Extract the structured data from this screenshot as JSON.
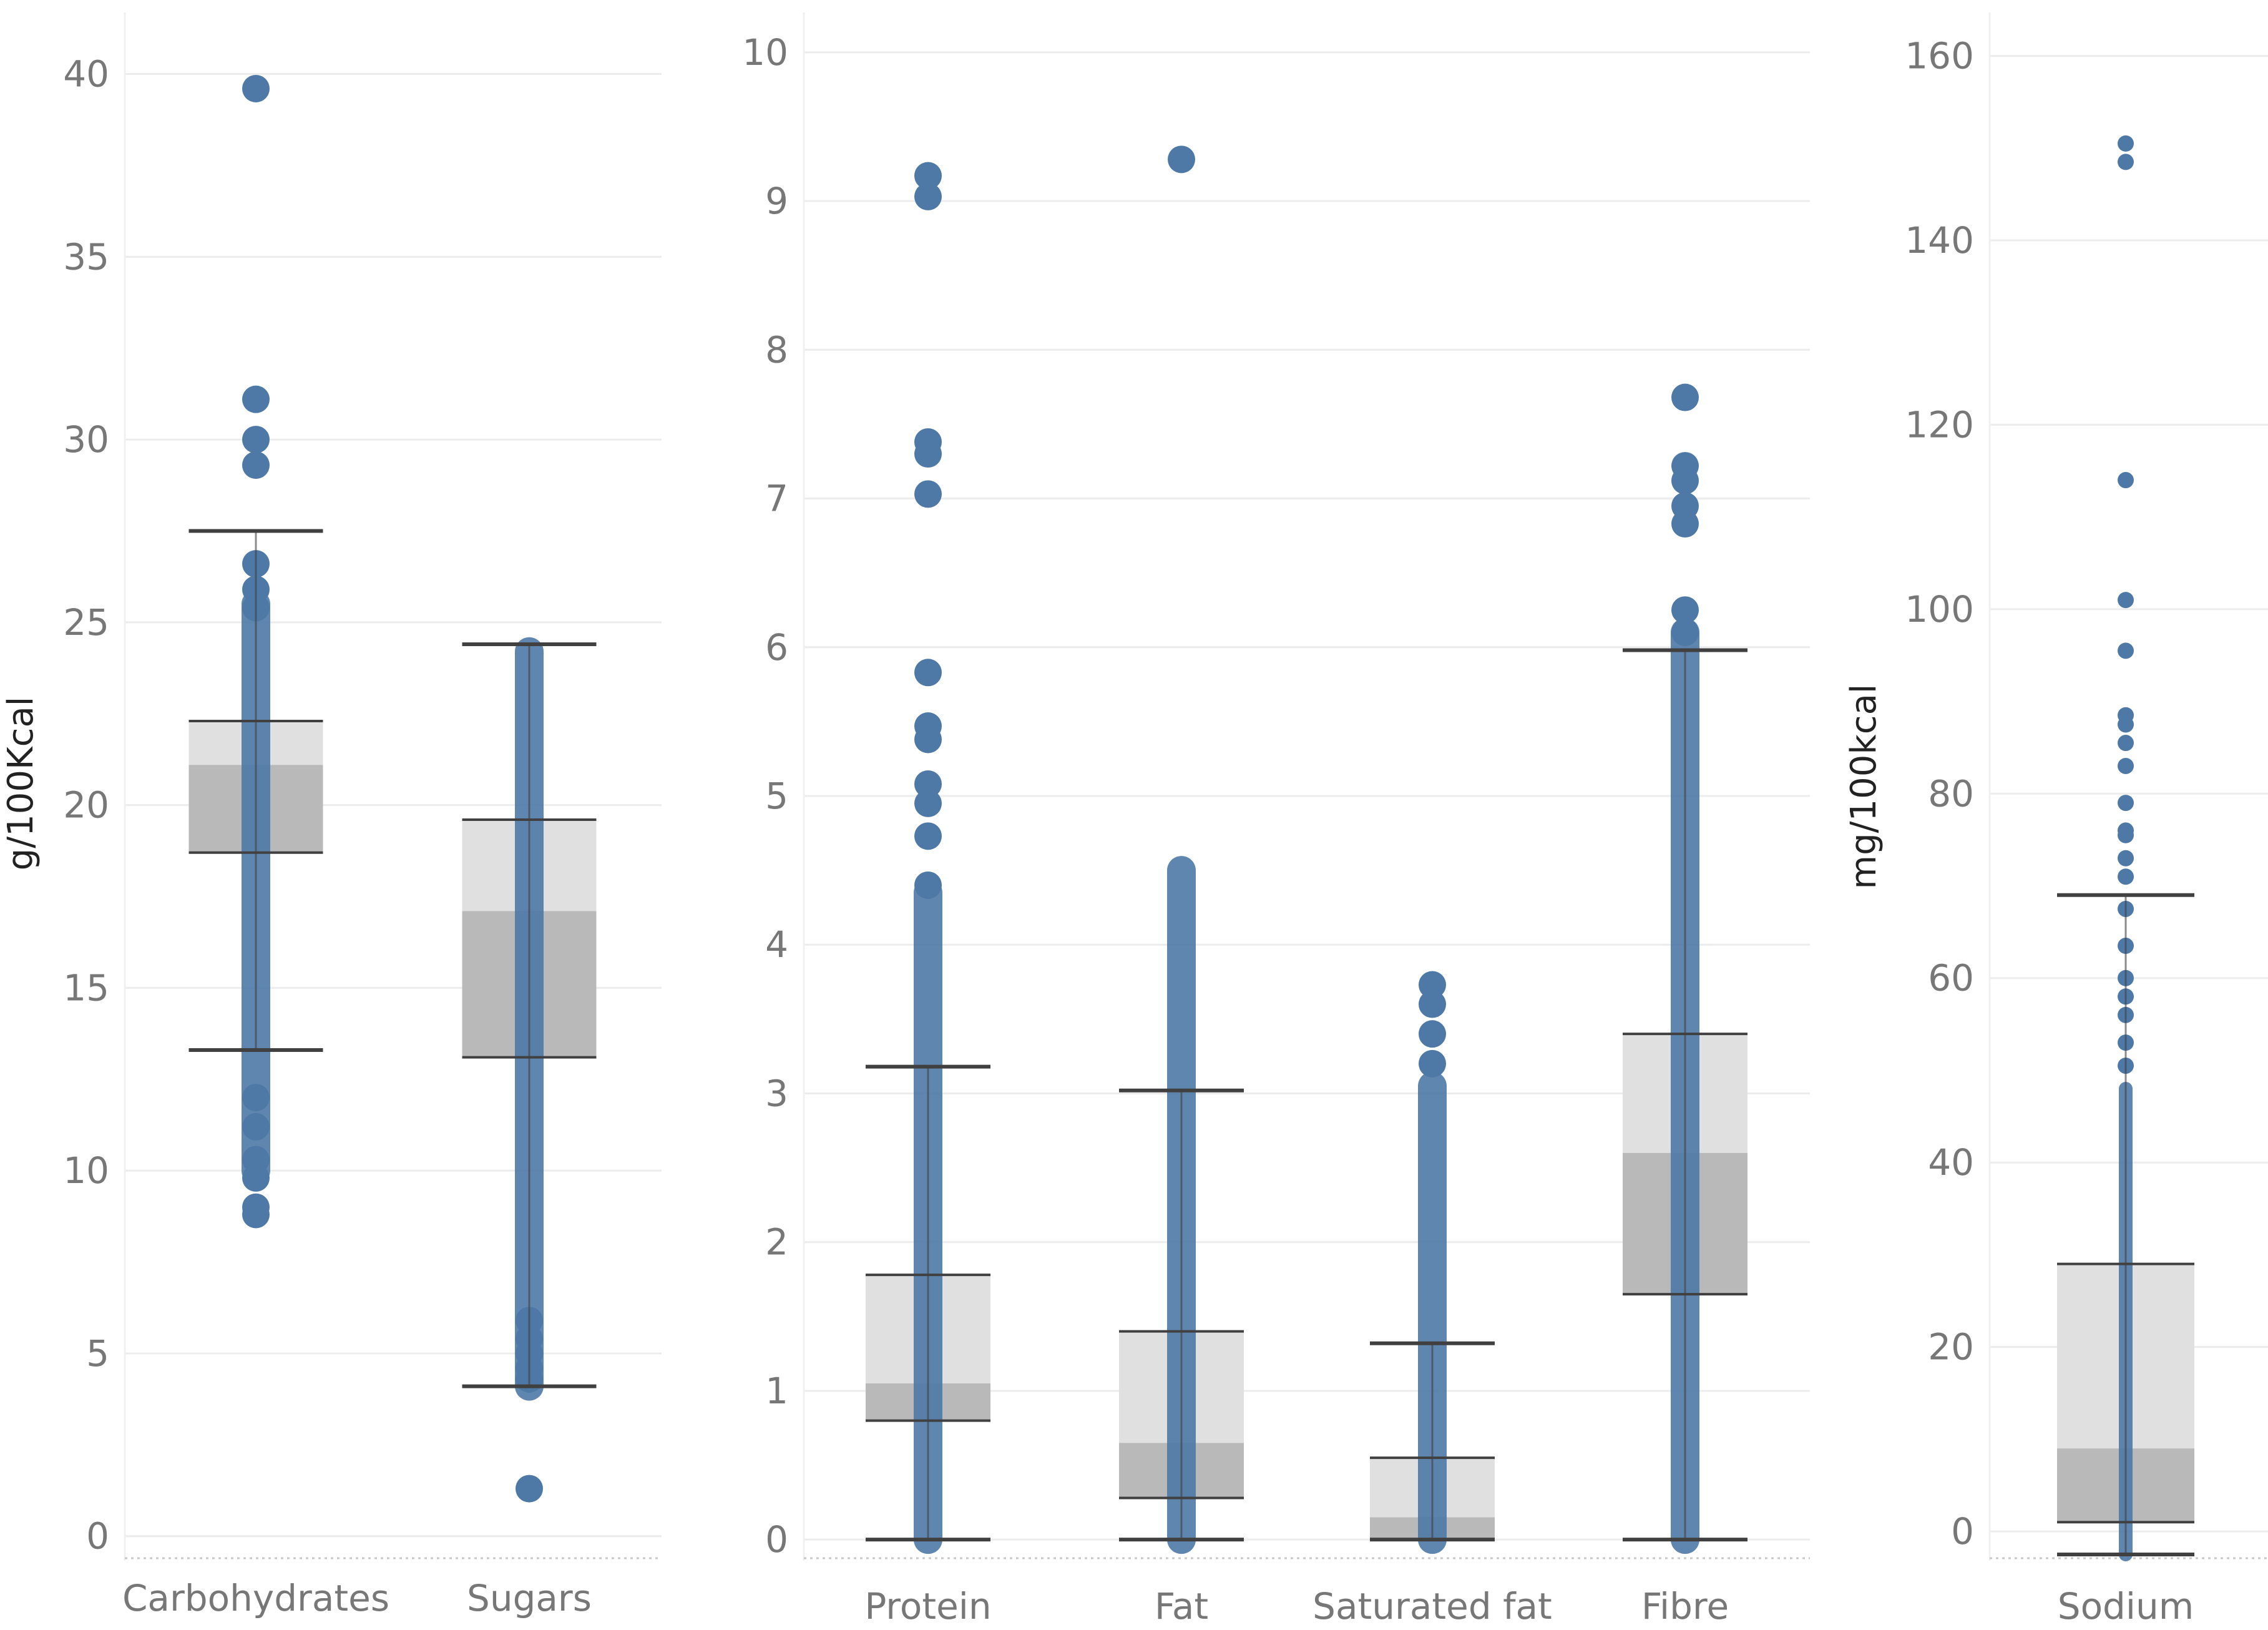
{
  "colors": {
    "point": "#4e79a7",
    "box_upper": "#e0e0e0",
    "box_lower": "#b9b9b9",
    "whisker": "#404040",
    "grid": "#ececec",
    "tick_text": "#777777"
  },
  "chart_data": [
    {
      "type": "box",
      "ylabel": "g/100Kcal",
      "ylim": [
        -0.5,
        41
      ],
      "yticks": [
        0,
        5,
        10,
        15,
        20,
        25,
        30,
        35,
        40
      ],
      "categories": [
        {
          "label": "Carbohydrates",
          "whisker_low": 13.3,
          "q1": 18.7,
          "median": 21.1,
          "q3": 22.3,
          "whisker_high": 27.5,
          "outliers": [
            39.6,
            31.1,
            30.0,
            29.3,
            26.6,
            25.9,
            25.4,
            12.0,
            11.2,
            10.3,
            9.8,
            9.0,
            8.8
          ],
          "point_range": [
            10.0,
            25.5
          ]
        },
        {
          "label": "Sugars",
          "whisker_low": 4.1,
          "q1": 13.1,
          "median": 17.1,
          "q3": 19.6,
          "whisker_high": 24.4,
          "outliers": [
            1.3,
            4.3,
            4.6,
            5.0,
            5.4,
            5.9
          ],
          "point_range": [
            4.1,
            24.2
          ]
        }
      ]
    },
    {
      "type": "box",
      "ylabel": "",
      "ylim": [
        -0.1,
        10.1
      ],
      "yticks": [
        0,
        1,
        2,
        3,
        4,
        5,
        6,
        7,
        8,
        9,
        10
      ],
      "categories": [
        {
          "label": "Protein",
          "whisker_low": 0.0,
          "q1": 0.8,
          "median": 1.05,
          "q3": 1.78,
          "whisker_high": 3.18,
          "outliers": [
            9.17,
            9.03,
            7.38,
            7.3,
            7.03,
            5.83,
            5.47,
            5.38,
            5.08,
            4.95,
            4.73,
            4.4
          ],
          "point_range": [
            0.0,
            4.35
          ]
        },
        {
          "label": "Fat",
          "whisker_low": 0.0,
          "q1": 0.28,
          "median": 0.65,
          "q3": 1.4,
          "whisker_high": 3.02,
          "outliers": [
            9.28
          ],
          "point_range": [
            0.0,
            4.5
          ]
        },
        {
          "label": "Saturated fat",
          "whisker_low": 0.0,
          "q1": 0.0,
          "median": 0.15,
          "q3": 0.55,
          "whisker_high": 1.32,
          "outliers": [
            3.73,
            3.6,
            3.4,
            3.2
          ],
          "point_range": [
            0.0,
            3.05
          ]
        },
        {
          "label": "Fibre",
          "whisker_low": 0.0,
          "q1": 1.65,
          "median": 2.6,
          "q3": 3.4,
          "whisker_high": 5.98,
          "outliers": [
            7.68,
            7.22,
            7.12,
            6.95,
            6.83,
            6.25,
            6.1
          ],
          "point_range": [
            0.0,
            6.1
          ]
        }
      ]
    },
    {
      "type": "box",
      "ylabel": "mg/100kcal",
      "ylim": [
        -2.5,
        162
      ],
      "yticks": [
        0,
        20,
        40,
        60,
        80,
        100,
        120,
        140,
        160
      ],
      "categories": [
        {
          "label": "Sodium",
          "whisker_low": -2.5,
          "q1": 1.0,
          "median": 9.0,
          "q3": 29.0,
          "whisker_high": 69.0,
          "outliers": [
            150.5,
            148.5,
            114.0,
            101.0,
            95.5,
            88.5,
            87.5,
            85.5,
            83.0,
            79.0,
            76.0,
            75.5,
            73.0,
            71.0,
            67.5,
            63.5,
            60.0,
            58.0,
            56.0,
            53.0,
            50.5
          ],
          "point_range": [
            -2.5,
            48.0
          ]
        }
      ]
    }
  ]
}
